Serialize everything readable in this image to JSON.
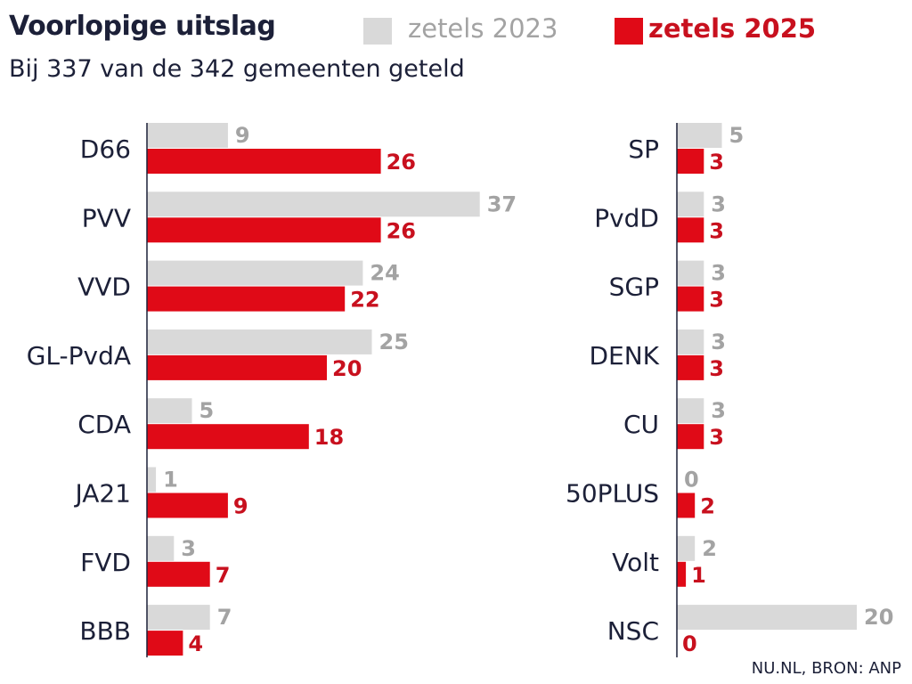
{
  "title": "Voorlopige uitslag",
  "subtitle": "Bij 337 van de 342 gemeenten geteld",
  "footer": "NU.NL, BRON: ANP",
  "colors": {
    "2023": "#d9d9d9",
    "2025": "#e00a17",
    "label_2023": "#a3a3a3",
    "label_2025": "#c8101e",
    "text": "#1c2038"
  },
  "chart_data": [
    {
      "type": "bar",
      "orientation": "horizontal",
      "categories": [
        "D66",
        "PVV",
        "VVD",
        "GL-PvdA",
        "CDA",
        "JA21",
        "FVD",
        "BBB"
      ],
      "series": [
        {
          "name": "zetels 2023",
          "values": [
            9,
            37,
            24,
            25,
            5,
            1,
            3,
            7
          ]
        },
        {
          "name": "zetels 2025",
          "values": [
            26,
            26,
            22,
            20,
            18,
            9,
            7,
            4
          ]
        }
      ],
      "legend": "top"
    },
    {
      "type": "bar",
      "orientation": "horizontal",
      "categories": [
        "SP",
        "PvdD",
        "SGP",
        "DENK",
        "CU",
        "50PLUS",
        "Volt",
        "NSC"
      ],
      "series": [
        {
          "name": "zetels 2023",
          "values": [
            5,
            3,
            3,
            3,
            3,
            0,
            2,
            20
          ]
        },
        {
          "name": "zetels 2025",
          "values": [
            3,
            3,
            3,
            3,
            3,
            2,
            1,
            0
          ]
        }
      ],
      "legend": "top"
    }
  ]
}
